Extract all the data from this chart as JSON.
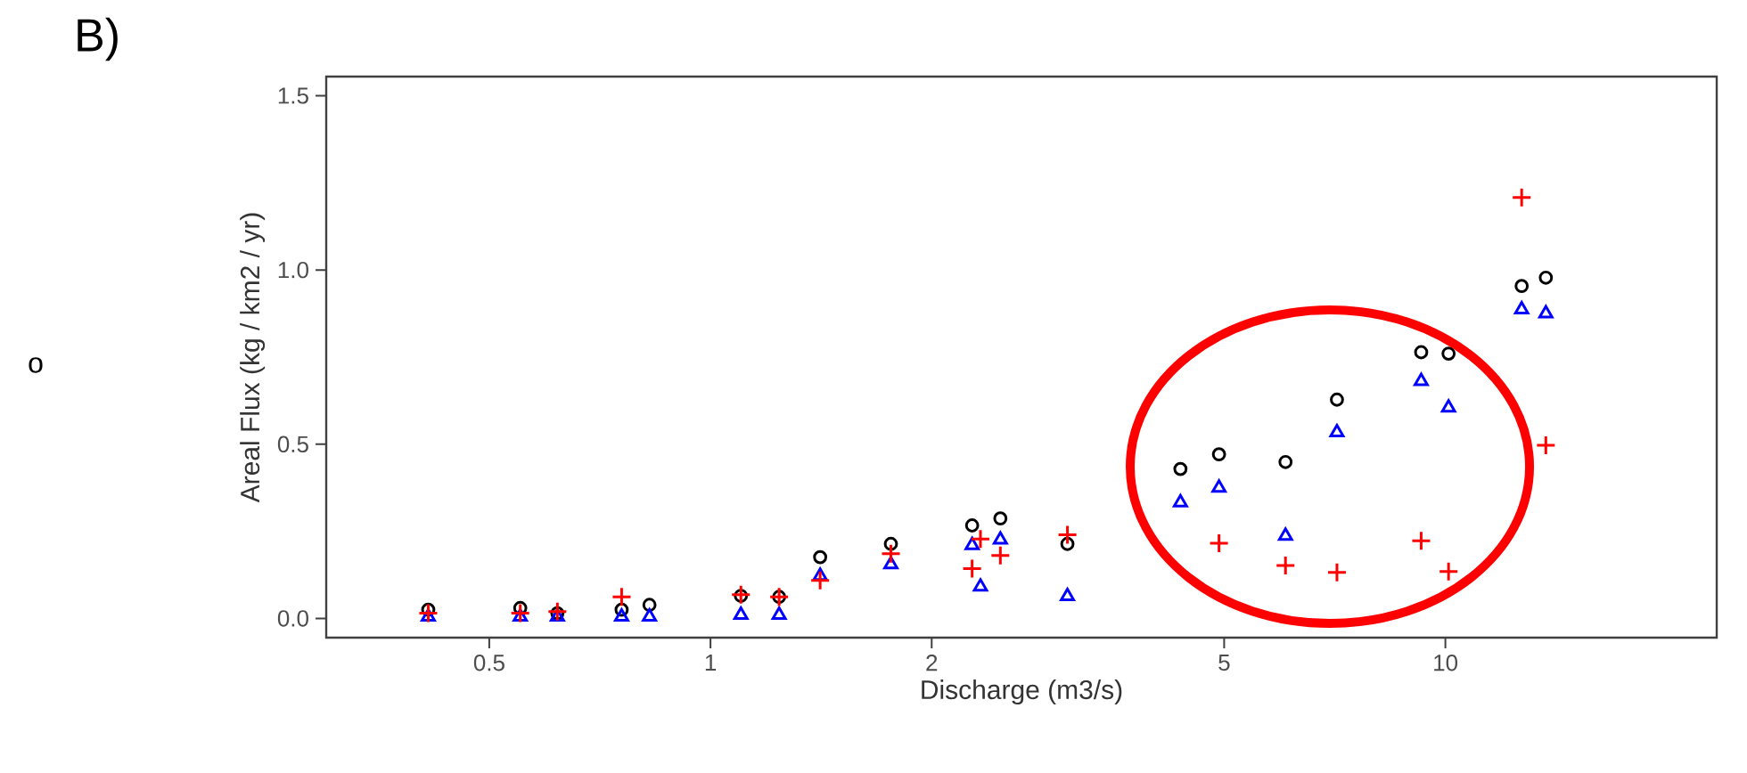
{
  "chart_data": {
    "type": "scatter",
    "title": "B)",
    "xlabel": "Discharge (m3/s)",
    "ylabel": "Areal Flux (kg / km2 / yr)",
    "log": "x",
    "xlim": [
      0.3,
      23.4
    ],
    "ylim": [
      -0.055,
      1.555
    ],
    "xticks": [
      0.5,
      1,
      2,
      5,
      10
    ],
    "yticks": [
      {
        "value": 0,
        "label": "0.0"
      },
      {
        "value": 0.5,
        "label": "0.5"
      },
      {
        "value": 1,
        "label": "1.0"
      },
      {
        "value": 1.5,
        "label": "1.5"
      }
    ],
    "grid": false,
    "annotations": [
      "o"
    ],
    "x": [
      0.413,
      0.551,
      0.619,
      0.757,
      0.826,
      1.1,
      1.24,
      1.41,
      1.76,
      2.27,
      2.33,
      2.48,
      3.06,
      4.36,
      4.92,
      6.06,
      7.12,
      9.27,
      10.1,
      12.7,
      13.7
    ],
    "series": [
      {
        "color": "#000000",
        "marker": "circle",
        "values": [
          0.025,
          0.03,
          0.015,
          0.025,
          0.039,
          0.065,
          0.062,
          0.176,
          0.214,
          0.267,
          null,
          0.287,
          0.214,
          0.429,
          0.471,
          0.449,
          0.628,
          0.764,
          0.76,
          0.954,
          0.978
        ]
      },
      {
        "color": "#0000ff",
        "marker": "triangle",
        "values": [
          0.005,
          0.005,
          0.005,
          0.005,
          0.005,
          0.01,
          0.01,
          0.122,
          0.155,
          0.21,
          0.091,
          0.226,
          0.064,
          0.333,
          0.375,
          0.237,
          0.534,
          0.681,
          0.605,
          0.887,
          0.875
        ]
      },
      {
        "color": "#ff0000",
        "marker": "cross",
        "values": [
          0.015,
          0.015,
          0.02,
          0.062,
          null,
          0.068,
          0.062,
          0.109,
          0.186,
          0.143,
          0.228,
          0.181,
          0.24,
          null,
          0.216,
          0.152,
          0.132,
          0.223,
          0.135,
          1.208,
          0.497
        ]
      }
    ]
  }
}
